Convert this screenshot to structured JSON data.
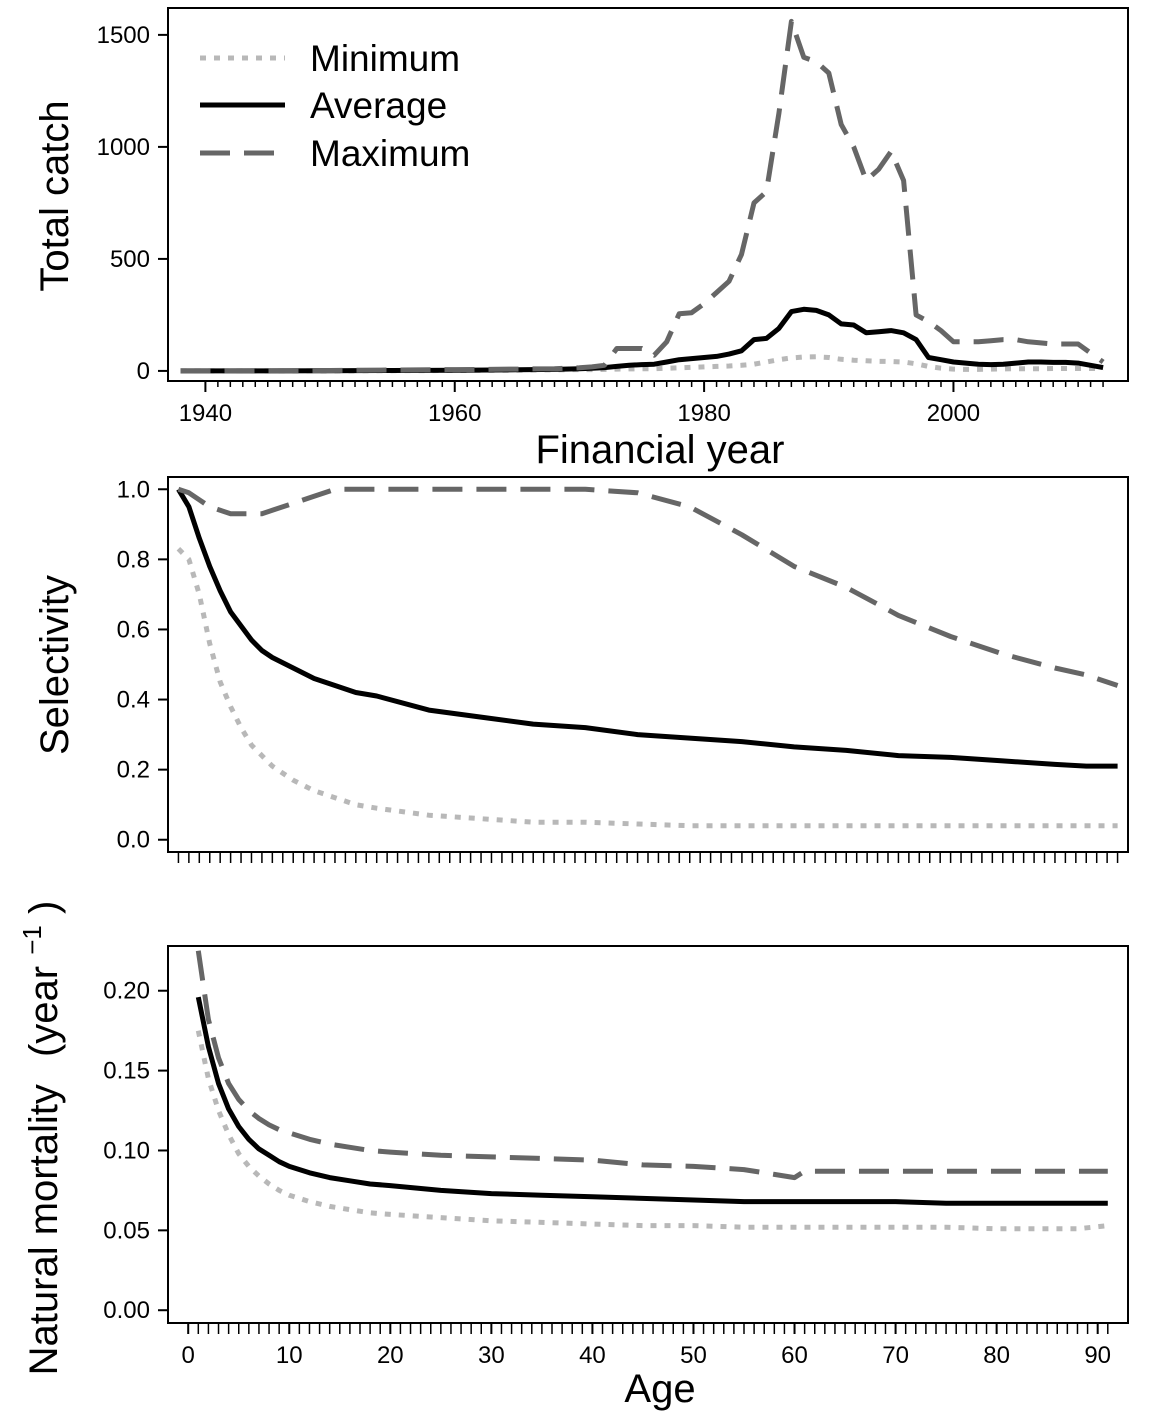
{
  "colors": {
    "minimum": "#b8b8b8",
    "average": "#000000",
    "maximum": "#666666"
  },
  "legend": {
    "placement": "top-left",
    "items": [
      {
        "key": "minimum",
        "label": "Minimum",
        "style": "dotted"
      },
      {
        "key": "average",
        "label": "Average",
        "style": "solid"
      },
      {
        "key": "maximum",
        "label": "Maximum",
        "style": "dashed"
      }
    ]
  },
  "chart_data": [
    {
      "type": "line",
      "xlabel": "Financial year",
      "ylabel": "Total catch",
      "xlim": [
        1937,
        2014
      ],
      "ylim": [
        -45,
        1620
      ],
      "xticks": [
        1940,
        1960,
        1980,
        2000
      ],
      "yticks": [
        0,
        500,
        1000,
        1500
      ],
      "grid": false,
      "x": [
        1938,
        1940,
        1945,
        1950,
        1955,
        1960,
        1965,
        1968,
        1970,
        1971,
        1972,
        1973,
        1974,
        1975,
        1976,
        1977,
        1978,
        1979,
        1980,
        1981,
        1982,
        1983,
        1984,
        1985,
        1986,
        1987,
        1988,
        1989,
        1990,
        1991,
        1992,
        1993,
        1994,
        1995,
        1996,
        1997,
        1998,
        1999,
        2000,
        2001,
        2002,
        2003,
        2004,
        2005,
        2006,
        2007,
        2008,
        2009,
        2010,
        2011,
        2012
      ],
      "series": [
        {
          "name": "Minimum",
          "key": "minimum",
          "values": [
            0,
            0,
            0,
            0,
            1,
            2,
            3,
            5,
            6,
            6,
            7,
            8,
            9,
            10,
            10,
            12,
            14,
            16,
            18,
            20,
            22,
            25,
            30,
            40,
            50,
            58,
            62,
            63,
            60,
            52,
            48,
            45,
            43,
            42,
            40,
            32,
            20,
            12,
            8,
            7,
            7,
            8,
            9,
            10,
            10,
            10,
            11,
            11,
            11,
            11,
            11
          ]
        },
        {
          "name": "Average",
          "key": "average",
          "values": [
            0,
            0,
            0,
            1,
            2,
            3,
            5,
            7,
            10,
            12,
            15,
            20,
            25,
            28,
            30,
            40,
            50,
            55,
            60,
            65,
            75,
            90,
            140,
            145,
            190,
            265,
            275,
            270,
            250,
            210,
            205,
            170,
            175,
            180,
            170,
            140,
            60,
            50,
            40,
            35,
            30,
            28,
            30,
            35,
            40,
            40,
            38,
            38,
            35,
            25,
            15
          ]
        },
        {
          "name": "Maximum",
          "key": "maximum",
          "values": [
            0,
            0,
            1,
            2,
            4,
            6,
            8,
            10,
            14,
            18,
            25,
            100,
            100,
            100,
            70,
            130,
            255,
            260,
            300,
            350,
            400,
            520,
            750,
            800,
            1150,
            1560,
            1400,
            1380,
            1330,
            1100,
            1000,
            850,
            900,
            980,
            850,
            250,
            220,
            180,
            130,
            130,
            130,
            135,
            140,
            140,
            130,
            125,
            120,
            120,
            120,
            80,
            40
          ]
        }
      ]
    },
    {
      "type": "line",
      "xlabel": "",
      "ylabel": "Selectivity",
      "xlim": [
        0,
        92
      ],
      "ylim": [
        -0.035,
        1.035
      ],
      "yticks": [
        "0.0",
        "0.2",
        "0.4",
        "0.6",
        "0.8",
        "1.0"
      ],
      "minor_x_ticks": "every age 2–91",
      "grid": false,
      "x": [
        1,
        2,
        3,
        4,
        5,
        6,
        7,
        8,
        9,
        10,
        12,
        14,
        16,
        18,
        20,
        25,
        30,
        35,
        40,
        45,
        50,
        55,
        60,
        65,
        70,
        75,
        80,
        85,
        88,
        91
      ],
      "series": [
        {
          "name": "Minimum",
          "key": "minimum",
          "values": [
            0.83,
            0.8,
            0.7,
            0.56,
            0.45,
            0.38,
            0.32,
            0.27,
            0.24,
            0.21,
            0.17,
            0.14,
            0.12,
            0.1,
            0.09,
            0.07,
            0.06,
            0.05,
            0.05,
            0.045,
            0.04,
            0.04,
            0.04,
            0.04,
            0.04,
            0.04,
            0.04,
            0.04,
            0.04,
            0.04
          ]
        },
        {
          "name": "Average",
          "key": "average",
          "values": [
            1.0,
            0.95,
            0.86,
            0.78,
            0.71,
            0.65,
            0.61,
            0.57,
            0.54,
            0.52,
            0.49,
            0.46,
            0.44,
            0.42,
            0.41,
            0.37,
            0.35,
            0.33,
            0.32,
            0.3,
            0.29,
            0.28,
            0.265,
            0.255,
            0.24,
            0.235,
            0.225,
            0.215,
            0.21,
            0.21
          ]
        },
        {
          "name": "Maximum",
          "key": "maximum",
          "values": [
            1.0,
            0.99,
            0.97,
            0.95,
            0.94,
            0.93,
            0.93,
            0.93,
            0.93,
            0.94,
            0.96,
            0.98,
            1.0,
            1.0,
            1.0,
            1.0,
            1.0,
            1.0,
            1.0,
            0.99,
            0.95,
            0.87,
            0.78,
            0.72,
            0.64,
            0.58,
            0.53,
            0.49,
            0.47,
            0.44
          ]
        }
      ]
    },
    {
      "type": "line",
      "xlabel": "Age",
      "ylabel": "Natural mortality",
      "ylabel_unit_base": "(year",
      "ylabel_unit_sup": "−1",
      "ylabel_unit_close": ")",
      "xlim": [
        -2,
        93
      ],
      "ylim": [
        -0.008,
        0.228
      ],
      "xticks": [
        0,
        10,
        20,
        30,
        40,
        50,
        60,
        70,
        80,
        90
      ],
      "yticks": [
        "0.00",
        "0.05",
        "0.10",
        "0.15",
        "0.20"
      ],
      "grid": false,
      "x": [
        1,
        2,
        3,
        4,
        5,
        6,
        7,
        8,
        9,
        10,
        12,
        14,
        16,
        18,
        20,
        25,
        30,
        35,
        40,
        45,
        50,
        55,
        58,
        60,
        61,
        65,
        70,
        75,
        80,
        85,
        88,
        91
      ],
      "series": [
        {
          "name": "Minimum",
          "key": "minimum",
          "values": [
            0.175,
            0.145,
            0.125,
            0.11,
            0.098,
            0.09,
            0.084,
            0.079,
            0.075,
            0.072,
            0.068,
            0.065,
            0.063,
            0.061,
            0.06,
            0.058,
            0.056,
            0.055,
            0.054,
            0.053,
            0.053,
            0.052,
            0.052,
            0.052,
            0.052,
            0.052,
            0.052,
            0.052,
            0.051,
            0.051,
            0.051,
            0.053
          ]
        },
        {
          "name": "Average",
          "key": "average",
          "values": [
            0.196,
            0.165,
            0.142,
            0.126,
            0.115,
            0.107,
            0.101,
            0.097,
            0.093,
            0.09,
            0.086,
            0.083,
            0.081,
            0.079,
            0.078,
            0.075,
            0.073,
            0.072,
            0.071,
            0.07,
            0.069,
            0.068,
            0.068,
            0.068,
            0.068,
            0.068,
            0.068,
            0.067,
            0.067,
            0.067,
            0.067,
            0.067
          ]
        },
        {
          "name": "Maximum",
          "key": "maximum",
          "values": [
            0.225,
            0.182,
            0.158,
            0.142,
            0.132,
            0.125,
            0.12,
            0.116,
            0.113,
            0.111,
            0.107,
            0.104,
            0.102,
            0.1,
            0.099,
            0.097,
            0.096,
            0.095,
            0.094,
            0.091,
            0.09,
            0.088,
            0.085,
            0.083,
            0.087,
            0.087,
            0.087,
            0.087,
            0.087,
            0.087,
            0.087,
            0.087
          ]
        }
      ]
    }
  ]
}
